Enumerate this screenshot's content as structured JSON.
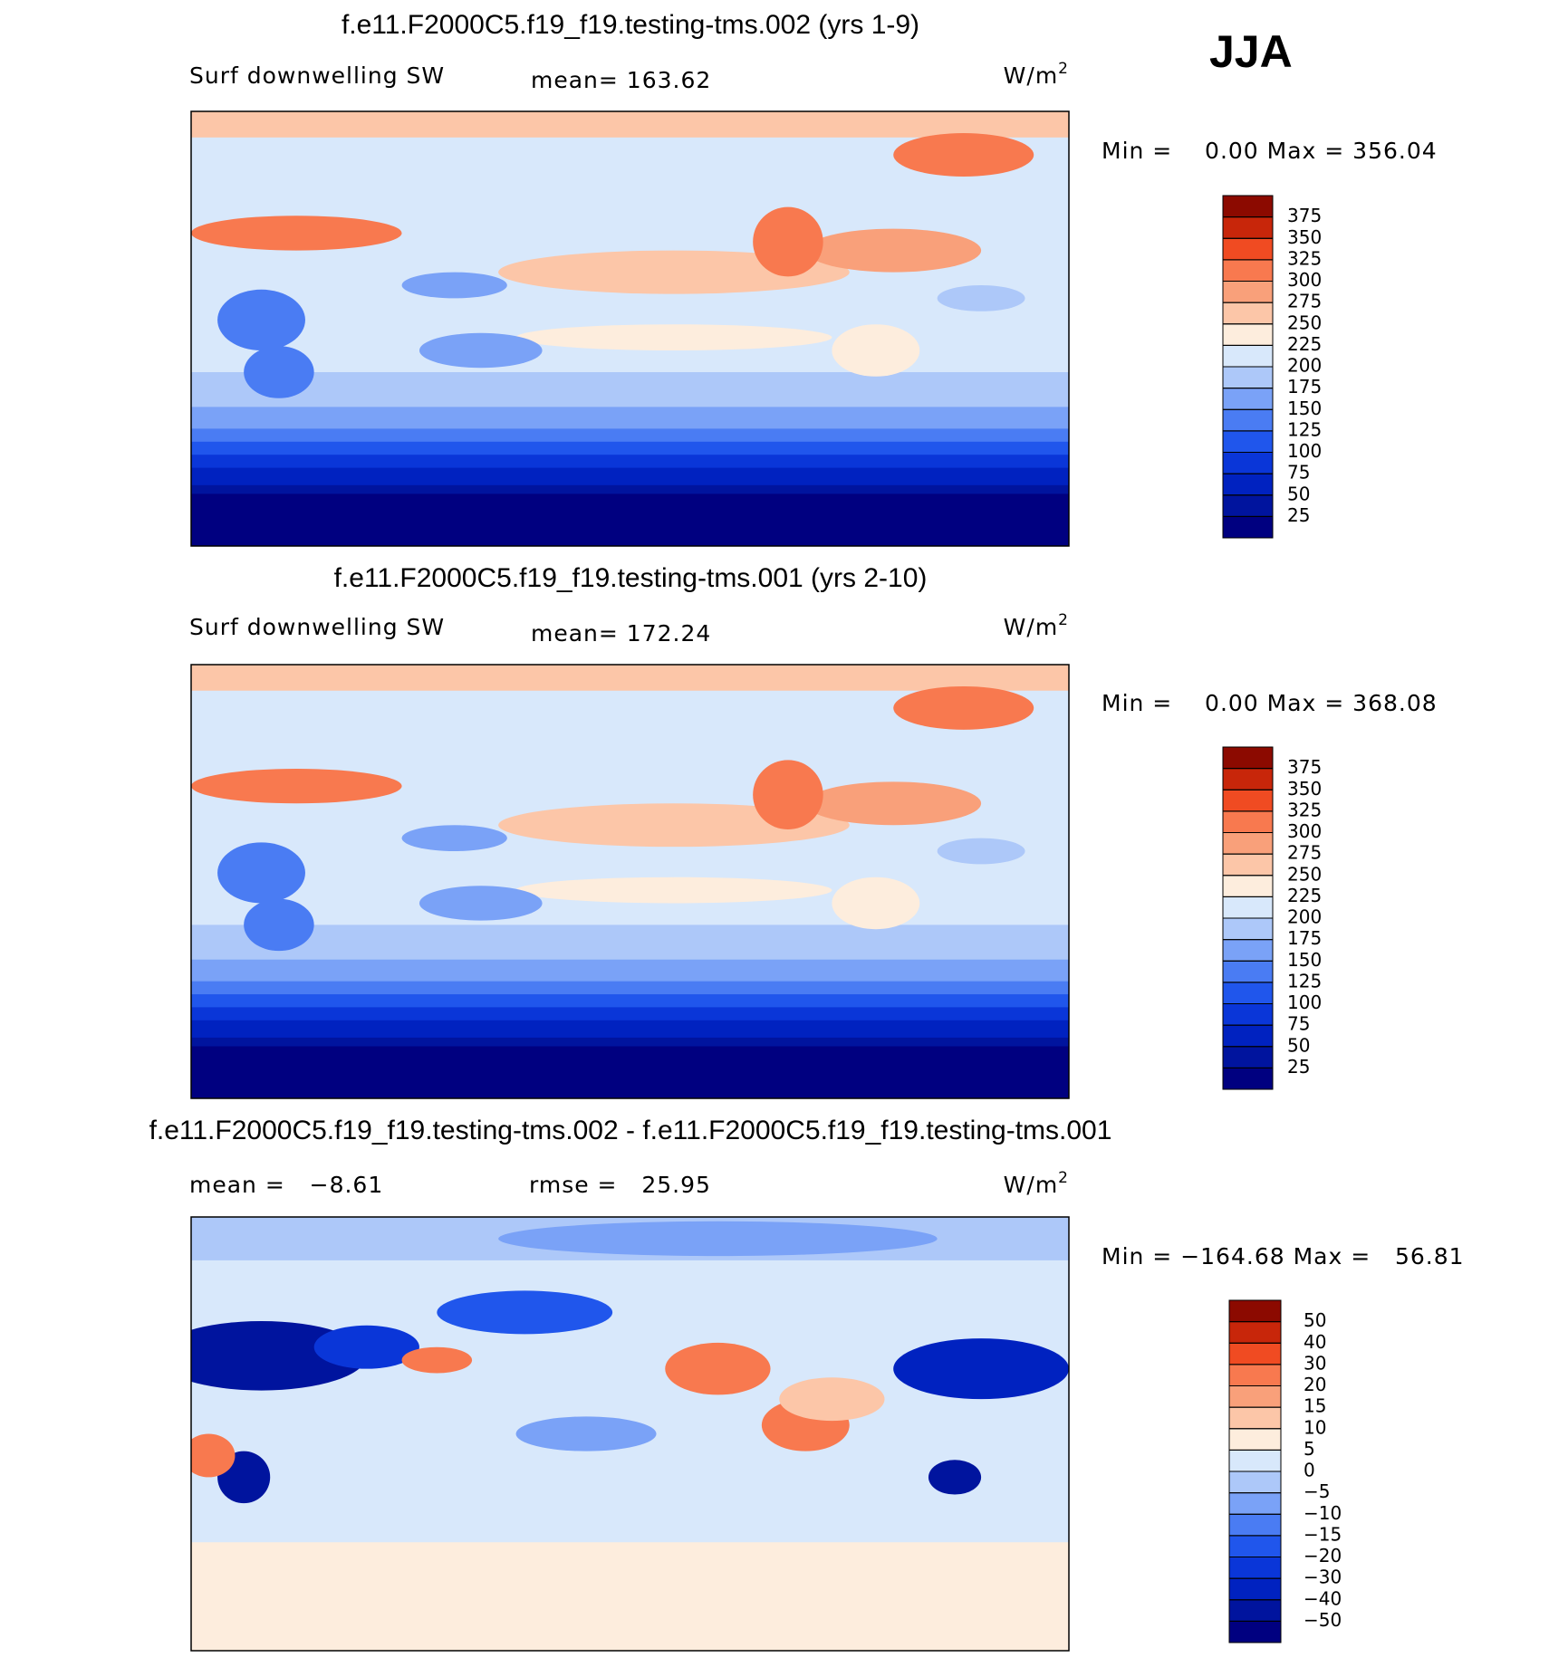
{
  "season": "JJA",
  "colors": [
    "#000080",
    "#00149e",
    "#0022c0",
    "#0a36d8",
    "#2056ec",
    "#4a7cf3",
    "#7aa2f7",
    "#adc8f9",
    "#d8e8fb",
    "#fdeddd",
    "#fcc6a8",
    "#f9a07a",
    "#f8794f",
    "#f04b22",
    "#c8260a",
    "#8c0a00"
  ],
  "panels": [
    {
      "title": "f.e11.F2000C5.f19_f19.testing-tms.002 (yrs 1-9)",
      "left": "Surf downwelling SW",
      "center": "mean= 163.62",
      "units": "W/m",
      "units_power": "2",
      "minmax": "Min =    0.00 Max = 356.04",
      "levels": [
        25,
        50,
        75,
        100,
        125,
        150,
        175,
        200,
        225,
        250,
        275,
        300,
        325,
        350,
        375
      ]
    },
    {
      "title": "f.e11.F2000C5.f19_f19.testing-tms.001 (yrs 2-10)",
      "left": "Surf downwelling SW",
      "center": "mean= 172.24",
      "units": "W/m",
      "units_power": "2",
      "minmax": "Min =    0.00 Max = 368.08",
      "levels": [
        25,
        50,
        75,
        100,
        125,
        150,
        175,
        200,
        225,
        250,
        275,
        300,
        325,
        350,
        375
      ]
    },
    {
      "title": "f.e11.F2000C5.f19_f19.testing-tms.002 - f.e11.F2000C5.f19_f19.testing-tms.001",
      "left": "mean =   −8.61",
      "center": "rmse =   25.95",
      "units": "W/m",
      "units_power": "2",
      "minmax": "Min = −164.68 Max =   56.81",
      "levels": [
        {
          "value": -50,
          "label": "−50"
        },
        {
          "value": -40,
          "label": "−40"
        },
        {
          "value": -30,
          "label": "−30"
        },
        {
          "value": -20,
          "label": "−20"
        },
        {
          "value": -15,
          "label": "−15"
        },
        {
          "value": -10,
          "label": "−10"
        },
        {
          "value": -5,
          "label": "−5"
        },
        0,
        5,
        10,
        15,
        20,
        30,
        40,
        50
      ]
    }
  ]
}
